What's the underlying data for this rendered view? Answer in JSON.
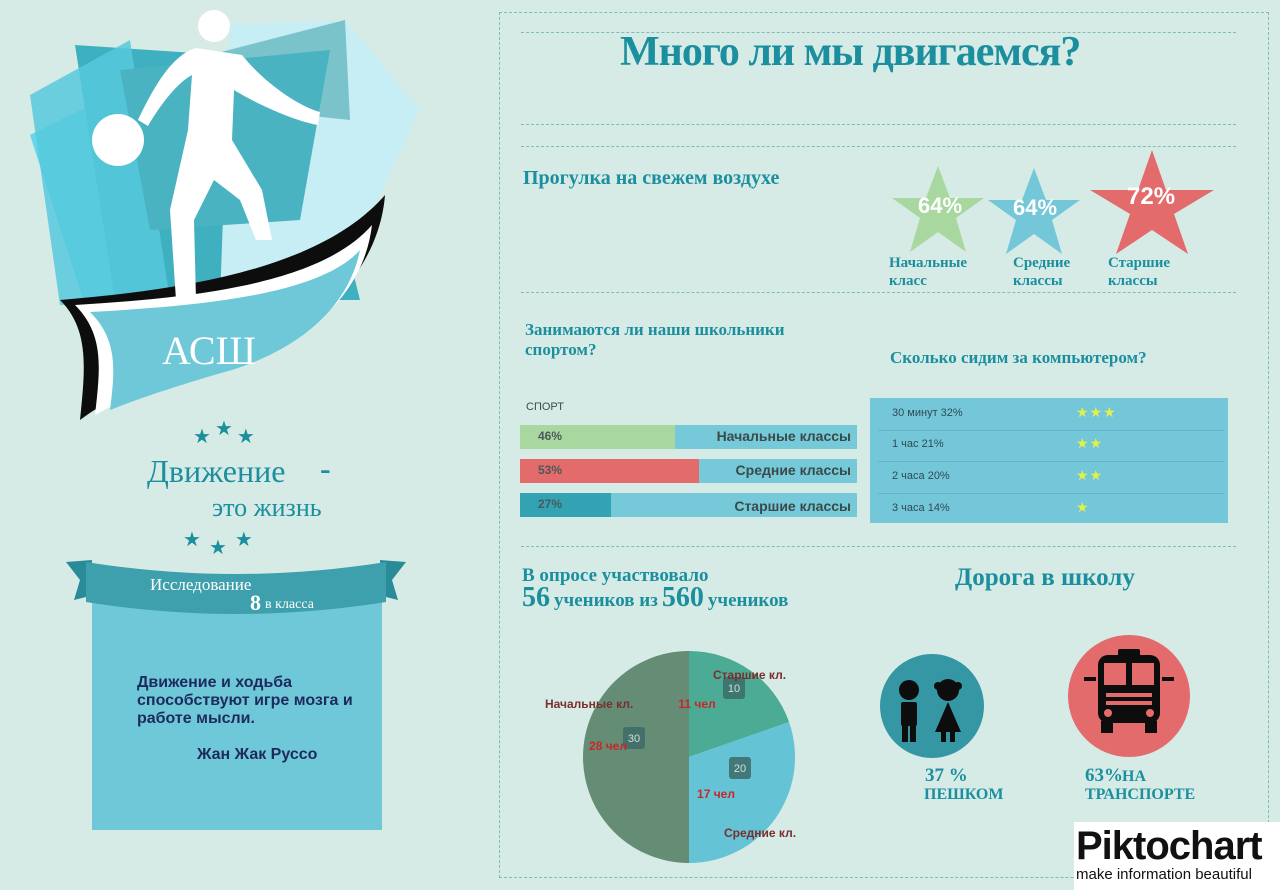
{
  "header": {
    "title": "Много ли мы двигаемся?"
  },
  "left": {
    "school": "АСШ",
    "motto_line1": "Движение",
    "motto_dash": "-",
    "motto_line2": "это жизнь",
    "ribbon_line1": "Исследование",
    "ribbon_num": "8",
    "ribbon_line2": "в класса",
    "quote": "Движение и ходьба способствуют игре мозга и работе мысли.",
    "quote_author": "Жан Жак Руссо"
  },
  "walk": {
    "title": "Прогулка на свежем воздухе",
    "items": [
      {
        "pct": "64%",
        "label": "Начальные класс",
        "color": "#a8d8a0"
      },
      {
        "pct": "64%",
        "label": "Средние классы",
        "color": "#74c7d9"
      },
      {
        "pct": "72%",
        "label": "Старшие классы",
        "color": "#e36b6b"
      }
    ]
  },
  "sport": {
    "title": "Занимаются ли наши школьники спортом?",
    "caption": "СПОРТ",
    "bars": [
      {
        "label": "Начальные классы",
        "pct_label": "46%",
        "value": 46,
        "color": "#a8d8a0"
      },
      {
        "label": "Средние классы",
        "pct_label": "53%",
        "value": 53,
        "color": "#e36b6b"
      },
      {
        "label": "Старшие классы",
        "pct_label": "27%",
        "value": 27,
        "color": "#33a3b3"
      }
    ]
  },
  "computer": {
    "title": "Сколько сидим за компьютером?",
    "rows": [
      {
        "label": "30 минут 32%",
        "stars": "★★★"
      },
      {
        "label": "1 час 21%",
        "stars": "★★"
      },
      {
        "label": "2 часа 20%",
        "stars": "★★"
      },
      {
        "label": "3 часа 14%",
        "stars": "★"
      }
    ]
  },
  "survey": {
    "line1": "В опросе участвовало",
    "n1": "56",
    "mid": "учеников из",
    "n2": "560",
    "end": "учеников"
  },
  "chart_data": {
    "type": "pie",
    "slices": [
      {
        "name": "Начальные кл.",
        "value": 28,
        "label": "28 чел",
        "marker": "30",
        "color": "#658d75"
      },
      {
        "name": "Старшие кл.",
        "value": 11,
        "label": "11 чел",
        "marker": "10",
        "color": "#4bab95"
      },
      {
        "name": "Средние кл.",
        "value": 17,
        "label": "17 чел",
        "marker": "20",
        "color": "#64c3d4"
      }
    ]
  },
  "road": {
    "title": "Дорога в школу",
    "walk_pct": "37 %",
    "walk_label": "ПЕШКОМ",
    "transport_pct": "63%",
    "transport_label": "НА ТРАНСПОРТЕ"
  },
  "brand": {
    "logo": "Piktochart",
    "tagline": "make information beautiful"
  }
}
